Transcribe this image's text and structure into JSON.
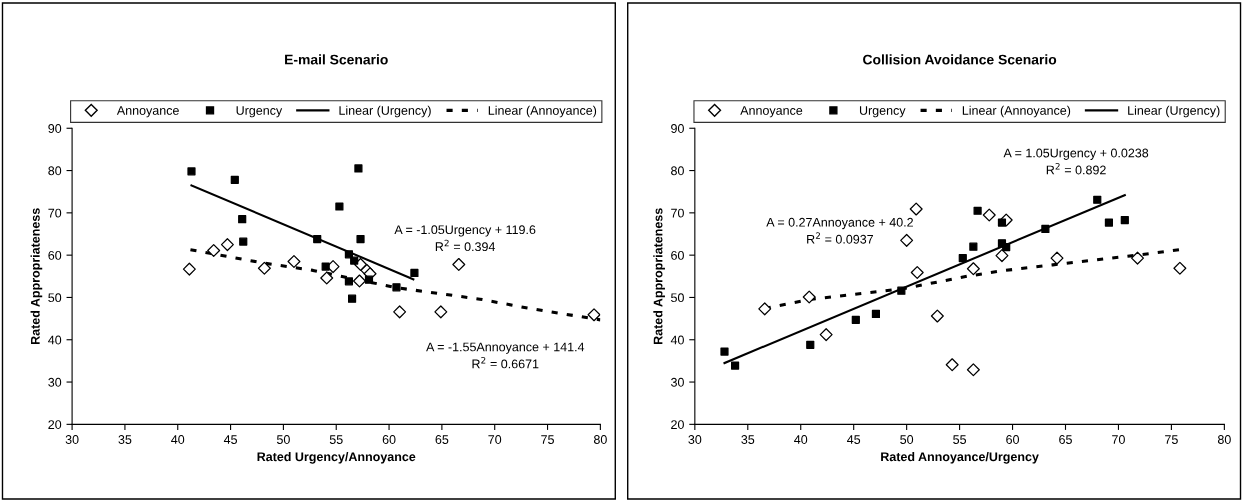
{
  "chart_data": [
    {
      "type": "scatter",
      "title": "E-mail Scenario",
      "xlabel": "Rated Urgency/Annoyance",
      "ylabel": "Rated Appropriateness",
      "xlim": [
        30,
        80
      ],
      "xticks": [
        30,
        35,
        40,
        45,
        50,
        55,
        60,
        65,
        70,
        75,
        80
      ],
      "ylim": [
        20,
        90
      ],
      "yticks": [
        20,
        30,
        40,
        50,
        60,
        70,
        80,
        90
      ],
      "grid": false,
      "legend": "top",
      "series": [
        {
          "name": "Annoyance",
          "marker": "diamond",
          "color": "#000000",
          "x": [
            41.1,
            43.4,
            44.7,
            48.2,
            51.0,
            54.1,
            54.7,
            57.2,
            57.3,
            57.9,
            58.2,
            61.0,
            64.9,
            66.6,
            79.4
          ],
          "values": [
            56.7,
            61.1,
            62.5,
            56.9,
            58.5,
            54.6,
            57.3,
            53.9,
            57.8,
            56.4,
            55.6,
            46.6,
            46.6,
            57.8,
            45.9
          ]
        },
        {
          "name": "Urgency",
          "marker": "square",
          "color": "#000000",
          "x": [
            41.3,
            45.4,
            46.1,
            46.2,
            53.2,
            54.0,
            55.3,
            56.2,
            56.2,
            56.5,
            56.7,
            57.1,
            57.3,
            58.1,
            60.7,
            62.4
          ],
          "values": [
            79.8,
            77.8,
            68.5,
            63.2,
            63.8,
            57.3,
            71.5,
            60.2,
            53.8,
            49.7,
            58.7,
            80.5,
            63.8,
            54.2,
            52.4,
            55.8
          ]
        },
        {
          "name": "Linear (Urgency)",
          "type": "line",
          "marker": "none",
          "line_style": "solid",
          "color": "#000000",
          "x": [
            41.3,
            62.3
          ],
          "values": [
            76.5,
            54.3
          ]
        },
        {
          "name": "Linear (Annoyance)",
          "type": "line",
          "marker": "none",
          "line_style": "dotted",
          "color": "#000000",
          "x": [
            41.2,
            48.2,
            52.8,
            60.7,
            68.6,
            73.1,
            80
          ],
          "values": [
            61.3,
            58.1,
            56.4,
            52.3,
            49.6,
            47.5,
            44.7
          ]
        }
      ],
      "annotations": [
        "A = -1.05Urgency + 119.6\nR$^{2}$ = 0.394",
        "A = -1.55Annoyance + 141.4\nR$^{2}$ = 0.6671"
      ]
    },
    {
      "type": "scatter",
      "title": "Collision Avoidance Scenario",
      "xlabel": "Rated Annoyance/Urgency",
      "ylabel": "Rated Appropriateness",
      "xlim": [
        30,
        80
      ],
      "xticks": [
        30,
        35,
        40,
        45,
        50,
        55,
        60,
        65,
        70,
        75,
        80
      ],
      "ylim": [
        20,
        90
      ],
      "yticks": [
        20,
        30,
        40,
        50,
        60,
        70,
        80,
        90
      ],
      "grid": false,
      "legend": "top",
      "series": [
        {
          "name": "Annoyance",
          "marker": "diamond",
          "color": "#000000",
          "x": [
            36.6,
            40.8,
            42.4,
            50.0,
            50.9,
            51.0,
            52.9,
            54.3,
            56.3,
            56.3,
            57.8,
            59.0,
            59.4,
            64.2,
            71.8,
            75.8
          ],
          "values": [
            47.3,
            50.1,
            41.2,
            63.5,
            70.9,
            55.9,
            45.6,
            34.1,
            32.9,
            56.8,
            69.5,
            59.9,
            68.3,
            59.3,
            59.3,
            56.9
          ]
        },
        {
          "name": "Urgency",
          "marker": "square",
          "color": "#000000",
          "x": [
            32.8,
            33.8,
            40.9,
            45.2,
            47.1,
            49.5,
            55.3,
            56.3,
            56.7,
            59.0,
            59.0,
            59.4,
            63.1,
            68.0,
            69.1,
            70.6
          ],
          "values": [
            37.2,
            33.9,
            38.8,
            44.7,
            46.1,
            51.6,
            59.3,
            62.0,
            70.5,
            67.7,
            62.8,
            61.9,
            66.2,
            73.1,
            67.7,
            68.3
          ]
        },
        {
          "name": "Linear (Annoyance)",
          "type": "line",
          "marker": "none",
          "line_style": "dotted",
          "color": "#000000",
          "x": [
            36.6,
            40.8,
            49.5,
            55.7,
            59.0,
            63.8,
            71.8,
            75.8
          ],
          "values": [
            47.4,
            49.5,
            52.0,
            55.0,
            56.3,
            57.7,
            60.0,
            61.3
          ]
        },
        {
          "name": "Linear (Urgency)",
          "type": "line",
          "marker": "none",
          "line_style": "solid",
          "color": "#000000",
          "x": [
            32.8,
            70.6
          ],
          "values": [
            34.5,
            74.2
          ]
        }
      ],
      "annotations": [
        "A = 0.27Annoyance + 40.2\nR$^{2}$ = 0.0937",
        "A = 1.05Urgency + 0.0238\nR$^{2}$ = 0.892"
      ]
    }
  ]
}
